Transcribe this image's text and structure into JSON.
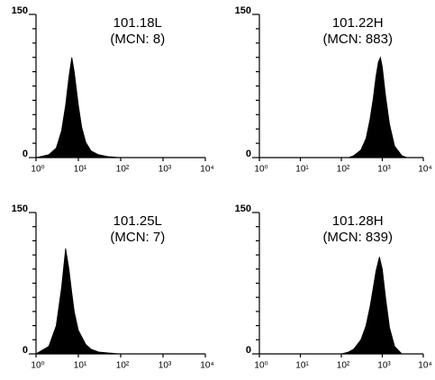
{
  "chart_data": [
    {
      "type": "area",
      "title": "101.18L",
      "subtitle": "(MCN: 8)",
      "xscale": "log",
      "color": "#000000",
      "x": [
        1,
        2,
        3,
        4,
        5,
        6,
        7,
        8,
        10,
        12,
        15,
        20,
        30,
        50,
        100
      ],
      "values": [
        0,
        3,
        10,
        28,
        55,
        85,
        105,
        90,
        55,
        32,
        16,
        7,
        3,
        1,
        0
      ],
      "xlim": [
        1,
        10000
      ],
      "xticks": [
        {
          "value": 1,
          "label": "10⁰"
        },
        {
          "value": 10,
          "label": "10¹"
        },
        {
          "value": 100,
          "label": "10²"
        },
        {
          "value": 1000,
          "label": "10³"
        },
        {
          "value": 10000,
          "label": "10⁴"
        }
      ],
      "ylim": [
        0,
        150
      ],
      "yticks": [
        0,
        150
      ],
      "yminorticks": [
        15,
        30,
        45,
        60,
        75,
        90,
        105,
        120,
        135
      ]
    },
    {
      "type": "area",
      "title": "101.22H",
      "subtitle": "(MCN: 883)",
      "xscale": "log",
      "color": "#000000",
      "x": [
        150,
        200,
        300,
        400,
        500,
        600,
        700,
        800,
        900,
        1000,
        1200,
        1500,
        2000,
        3000,
        4000
      ],
      "values": [
        0,
        2,
        8,
        20,
        40,
        62,
        85,
        100,
        105,
        95,
        65,
        35,
        12,
        2,
        0
      ],
      "xlim": [
        1,
        10000
      ],
      "xticks": [
        {
          "value": 1,
          "label": "10⁰"
        },
        {
          "value": 10,
          "label": "10¹"
        },
        {
          "value": 100,
          "label": "10²"
        },
        {
          "value": 1000,
          "label": "10³"
        },
        {
          "value": 10000,
          "label": "10⁴"
        }
      ],
      "ylim": [
        0,
        150
      ],
      "yticks": [
        0,
        150
      ],
      "yminorticks": [
        15,
        30,
        45,
        60,
        75,
        90,
        105,
        120,
        135
      ]
    },
    {
      "type": "area",
      "title": "101.25L",
      "subtitle": "(MCN: 7)",
      "xscale": "log",
      "color": "#000000",
      "x": [
        1,
        2,
        3,
        4,
        5,
        6,
        7,
        8,
        10,
        15,
        20,
        30,
        50,
        100
      ],
      "values": [
        0,
        8,
        30,
        70,
        112,
        90,
        65,
        45,
        25,
        10,
        5,
        2,
        1,
        0
      ],
      "xlim": [
        1,
        10000
      ],
      "xticks": [
        {
          "value": 1,
          "label": "10⁰"
        },
        {
          "value": 10,
          "label": "10¹"
        },
        {
          "value": 100,
          "label": "10²"
        },
        {
          "value": 1000,
          "label": "10³"
        },
        {
          "value": 10000,
          "label": "10⁴"
        }
      ],
      "ylim": [
        0,
        150
      ],
      "yticks": [
        0,
        150
      ],
      "yminorticks": [
        15,
        30,
        45,
        60,
        75,
        90,
        105,
        120,
        135
      ]
    },
    {
      "type": "area",
      "title": "101.28H",
      "subtitle": "(MCN: 839)",
      "xscale": "log",
      "color": "#000000",
      "x": [
        100,
        150,
        200,
        300,
        400,
        500,
        600,
        700,
        850,
        1000,
        1200,
        1500,
        2000,
        3000
      ],
      "values": [
        0,
        2,
        5,
        15,
        30,
        50,
        70,
        88,
        103,
        90,
        60,
        28,
        8,
        0
      ],
      "xlim": [
        1,
        10000
      ],
      "xticks": [
        {
          "value": 1,
          "label": "10⁰"
        },
        {
          "value": 10,
          "label": "10¹"
        },
        {
          "value": 100,
          "label": "10²"
        },
        {
          "value": 1000,
          "label": "10³"
        },
        {
          "value": 10000,
          "label": "10⁴"
        }
      ],
      "ylim": [
        0,
        150
      ],
      "yticks": [
        0,
        150
      ],
      "yminorticks": [
        15,
        30,
        45,
        60,
        75,
        90,
        105,
        120,
        135
      ]
    }
  ]
}
